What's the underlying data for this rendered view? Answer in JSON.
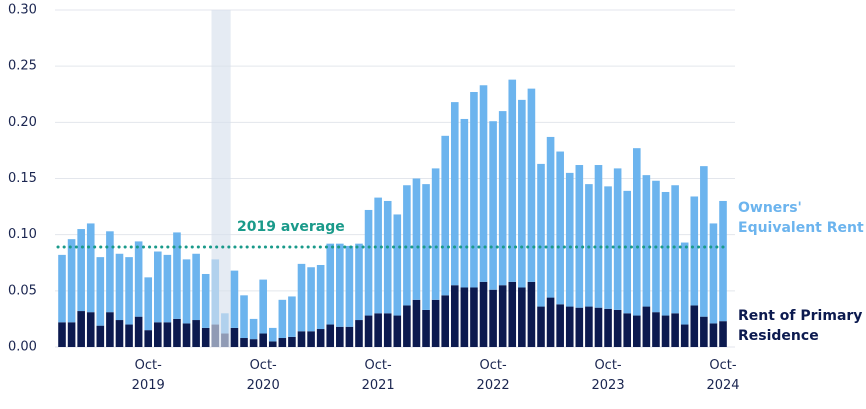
{
  "chart_data": {
    "type": "stacked_bar",
    "categories": [
      null,
      null,
      null,
      null,
      null,
      null,
      null,
      null,
      null,
      "Oct-2019",
      null,
      null,
      null,
      null,
      null,
      null,
      null,
      null,
      null,
      null,
      null,
      "Oct-2020",
      null,
      null,
      null,
      null,
      null,
      null,
      null,
      null,
      null,
      null,
      null,
      "Oct-2021",
      null,
      null,
      null,
      null,
      null,
      null,
      null,
      null,
      null,
      null,
      null,
      "Oct-2022",
      null,
      null,
      null,
      null,
      null,
      null,
      null,
      null,
      null,
      null,
      null,
      "Oct-2023",
      null,
      null,
      null,
      null,
      null,
      null,
      null,
      null,
      null,
      null,
      null,
      "Oct-2024"
    ],
    "series": [
      {
        "name": "Rent of Primary Residence",
        "color": "#0c1a4f",
        "values": [
          0.022,
          0.022,
          0.032,
          0.031,
          0.019,
          0.031,
          0.024,
          0.02,
          0.027,
          0.015,
          0.022,
          0.022,
          0.025,
          0.021,
          0.024,
          0.017,
          0.02,
          0.012,
          0.017,
          0.008,
          0.007,
          0.012,
          0.005,
          0.008,
          0.009,
          0.014,
          0.014,
          0.016,
          0.02,
          0.018,
          0.018,
          0.024,
          0.028,
          0.03,
          0.03,
          0.028,
          0.037,
          0.042,
          0.033,
          0.042,
          0.046,
          0.055,
          0.053,
          0.053,
          0.058,
          0.051,
          0.055,
          0.058,
          0.053,
          0.058,
          0.036,
          0.044,
          0.038,
          0.036,
          0.035,
          0.036,
          0.035,
          0.034,
          0.033,
          0.03,
          0.028,
          0.036,
          0.031,
          0.028,
          0.03,
          0.02,
          0.037,
          0.027,
          0.021,
          0.023
        ]
      },
      {
        "name": "Owners' Equivalent Rent",
        "color": "#6cb4ee",
        "values": [
          0.06,
          0.074,
          0.073,
          0.079,
          0.061,
          0.072,
          0.059,
          0.06,
          0.067,
          0.047,
          0.063,
          0.06,
          0.077,
          0.057,
          0.059,
          0.048,
          0.058,
          0.018,
          0.051,
          0.038,
          0.018,
          0.048,
          0.012,
          0.034,
          0.036,
          0.06,
          0.057,
          0.057,
          0.072,
          0.074,
          0.072,
          0.068,
          0.094,
          0.103,
          0.1,
          0.09,
          0.107,
          0.108,
          0.112,
          0.117,
          0.142,
          0.163,
          0.15,
          0.174,
          0.175,
          0.15,
          0.155,
          0.18,
          0.167,
          0.172,
          0.127,
          0.143,
          0.136,
          0.119,
          0.127,
          0.109,
          0.127,
          0.109,
          0.126,
          0.109,
          0.149,
          0.117,
          0.117,
          0.11,
          0.114,
          0.073,
          0.097,
          0.134,
          0.089,
          0.107
        ]
      }
    ],
    "annotation": {
      "label": "2019 average",
      "value": 0.089,
      "color": "#1a9a8a"
    },
    "ylim": [
      0,
      0.3
    ],
    "yticks": [
      {
        "value": 0,
        "label": "0.00"
      },
      0.05,
      {
        "value": 0.1,
        "label": "0.10"
      },
      0.15,
      {
        "value": 0.2,
        "label": "0.20"
      },
      0.25,
      {
        "value": 0.3,
        "label": "0.30"
      }
    ],
    "grid": true
  }
}
